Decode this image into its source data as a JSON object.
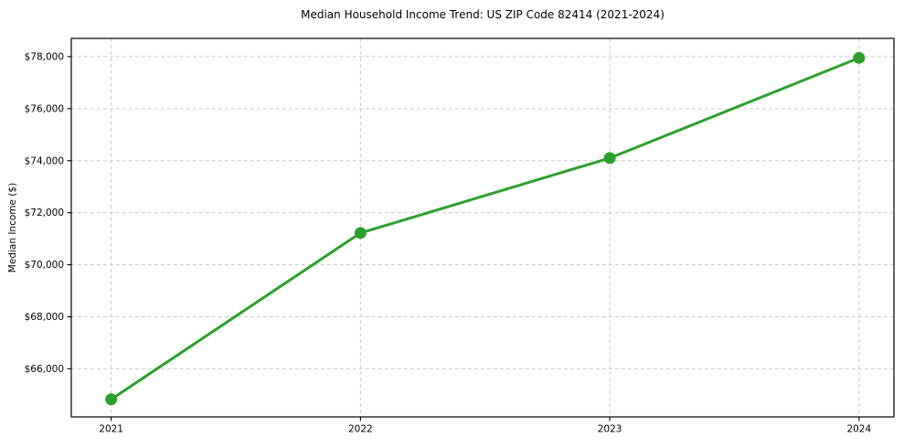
{
  "chart_data": {
    "type": "line",
    "title": "Median Household Income Trend: US ZIP Code 82414 (2021-2024)",
    "xlabel": "",
    "ylabel": "Median Income ($)",
    "x": [
      2021,
      2022,
      2023,
      2024
    ],
    "series": [
      {
        "name": "Median Household Income",
        "values": [
          64825,
          71220,
          74100,
          77950
        ]
      }
    ],
    "xticks": [
      2021,
      2022,
      2023,
      2024
    ],
    "yticks": [
      66000,
      68000,
      70000,
      72000,
      74000,
      76000,
      78000
    ],
    "ytick_prefix": "$",
    "xlim": [
      2020.84,
      2024.14
    ],
    "ylim": [
      64150,
      78700
    ],
    "grid": true,
    "grid_style": "dashed",
    "legend": false,
    "colors": {
      "line": "#2ca02c",
      "marker": "#2ca02c",
      "grid": "#cccccc",
      "spine": "#000000",
      "text": "#000000",
      "background": "#ffffff"
    },
    "line_width": 3,
    "marker_size": 6.5
  }
}
